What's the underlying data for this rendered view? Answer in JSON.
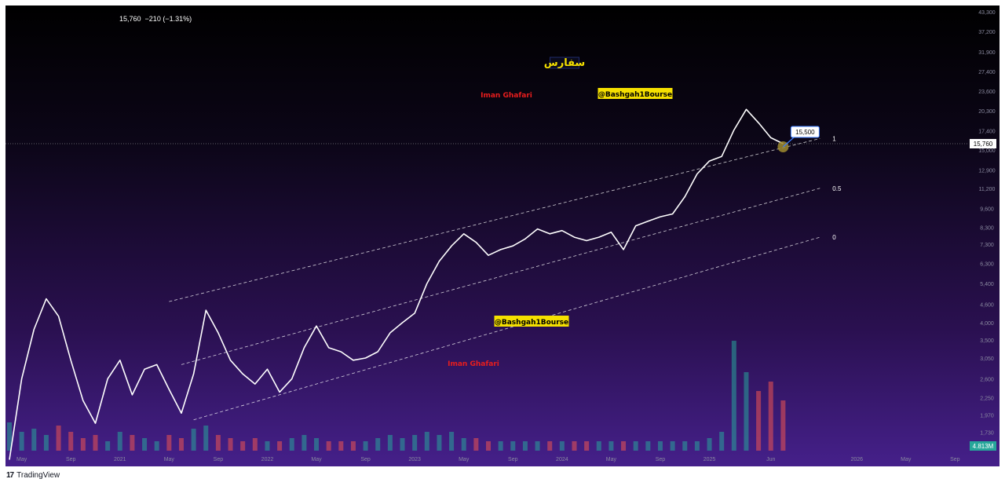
{
  "header": {
    "price": "15,760",
    "change": "−210 (−1.31%)"
  },
  "footer": {
    "brand": "TradingView"
  },
  "annotations": {
    "title_persian": "سفارس",
    "author_1": "Iman Ghafari",
    "author_2": "Iman Ghafari",
    "channel_1": "@Bashgah1Bourse",
    "channel_2": "@Bashgah1Bourse"
  },
  "price_label": "15,760",
  "callout_label": "15,500",
  "volume_label": "4.813M",
  "channel_lines": [
    {
      "label": "1",
      "start": [
        "2021-05",
        4700
      ],
      "end": [
        "2025-10",
        16400
      ]
    },
    {
      "label": "0.5",
      "start": [
        "2021-06",
        2900
      ],
      "end": [
        "2025-10",
        11200
      ]
    },
    {
      "label": "0",
      "start": [
        "2021-07",
        1900
      ],
      "end": [
        "2025-10",
        7700
      ]
    }
  ],
  "colors": {
    "line": "#ffffff",
    "author": "#e81d1d",
    "channel_bg": "#f5e000",
    "title_border": "#1f2a6b",
    "title_text": "#f5e000",
    "marker": "#a08c30",
    "volume_pos": "#26a69a",
    "volume_neg": "#ef5350"
  },
  "chart_data": {
    "type": "line",
    "title": "",
    "xlabel": "",
    "ylabel": "",
    "y_scale": "log",
    "x_ticks": [
      "May",
      "Sep",
      "2021",
      "May",
      "Sep",
      "2022",
      "May",
      "Sep",
      "2023",
      "May",
      "Sep",
      "2024",
      "May",
      "Sep",
      "2025",
      "Jun",
      "2026",
      "May",
      "Sep"
    ],
    "series": [
      {
        "values": [
          [
            "2020-04",
            1400
          ],
          [
            "2020-05",
            2600
          ],
          [
            "2020-06",
            3800
          ],
          [
            "2020-07",
            4800
          ],
          [
            "2020-08",
            4200
          ],
          [
            "2020-09",
            3000
          ],
          [
            "2020-10",
            2200
          ],
          [
            "2020-11",
            1850
          ],
          [
            "2020-12",
            2600
          ],
          [
            "2021-01",
            3000
          ],
          [
            "2021-02",
            2300
          ],
          [
            "2021-03",
            2800
          ],
          [
            "2021-04",
            2900
          ],
          [
            "2021-05",
            2400
          ],
          [
            "2021-06",
            2000
          ],
          [
            "2021-07",
            2700
          ],
          [
            "2021-08",
            4400
          ],
          [
            "2021-09",
            3700
          ],
          [
            "2021-10",
            3000
          ],
          [
            "2021-11",
            2700
          ],
          [
            "2021-12",
            2500
          ],
          [
            "2022-01",
            2800
          ],
          [
            "2022-02",
            2350
          ],
          [
            "2022-03",
            2600
          ],
          [
            "2022-04",
            3300
          ],
          [
            "2022-05",
            3900
          ],
          [
            "2022-06",
            3300
          ],
          [
            "2022-07",
            3200
          ],
          [
            "2022-08",
            3000
          ],
          [
            "2022-09",
            3050
          ],
          [
            "2022-10",
            3200
          ],
          [
            "2022-11",
            3700
          ],
          [
            "2022-12",
            4000
          ],
          [
            "2023-01",
            4300
          ],
          [
            "2023-02",
            5400
          ],
          [
            "2023-03",
            6400
          ],
          [
            "2023-04",
            7200
          ],
          [
            "2023-05",
            7900
          ],
          [
            "2023-06",
            7400
          ],
          [
            "2023-07",
            6700
          ],
          [
            "2023-08",
            7000
          ],
          [
            "2023-09",
            7200
          ],
          [
            "2023-10",
            7600
          ],
          [
            "2023-11",
            8200
          ],
          [
            "2023-12",
            7900
          ],
          [
            "2024-01",
            8100
          ],
          [
            "2024-02",
            7700
          ],
          [
            "2024-03",
            7500
          ],
          [
            "2024-04",
            7700
          ],
          [
            "2024-05",
            8000
          ],
          [
            "2024-06",
            7000
          ],
          [
            "2024-07",
            8400
          ],
          [
            "2024-08",
            8700
          ],
          [
            "2024-09",
            9000
          ],
          [
            "2024-10",
            9200
          ],
          [
            "2024-11",
            10500
          ],
          [
            "2024-12",
            12500
          ],
          [
            "2025-01",
            13800
          ],
          [
            "2025-02",
            14300
          ],
          [
            "2025-03",
            17500
          ],
          [
            "2025-04",
            20500
          ],
          [
            "2025-05",
            18500
          ],
          [
            "2025-06",
            16500
          ],
          [
            "2025-07",
            15760
          ]
        ]
      }
    ],
    "y_ticks": [
      1730,
      1970,
      2250,
      2600,
      3050,
      3500,
      4000,
      4600,
      5400,
      6300,
      7300,
      8300,
      9600,
      11200,
      12900,
      15000,
      17400,
      20300,
      23600,
      27400,
      31900,
      37200,
      43300
    ],
    "volume": {
      "values": [
        0.9,
        0.6,
        0.7,
        0.5,
        0.8,
        0.6,
        0.4,
        0.5,
        0.3,
        0.6,
        0.5,
        0.4,
        0.3,
        0.5,
        0.4,
        0.7,
        0.8,
        0.5,
        0.4,
        0.3,
        0.4,
        0.3,
        0.3,
        0.4,
        0.5,
        0.4,
        0.3,
        0.3,
        0.3,
        0.3,
        0.4,
        0.5,
        0.4,
        0.5,
        0.6,
        0.5,
        0.6,
        0.4,
        0.4,
        0.3,
        0.3,
        0.3,
        0.3,
        0.3,
        0.3,
        0.3,
        0.3,
        0.3,
        0.3,
        0.3,
        0.3,
        0.3,
        0.3,
        0.3,
        0.3,
        0.3,
        0.3,
        0.4,
        0.6,
        3.5,
        2.5,
        1.9,
        2.2,
        1.6
      ],
      "unit": "M"
    },
    "grid": false,
    "legend": "none"
  }
}
